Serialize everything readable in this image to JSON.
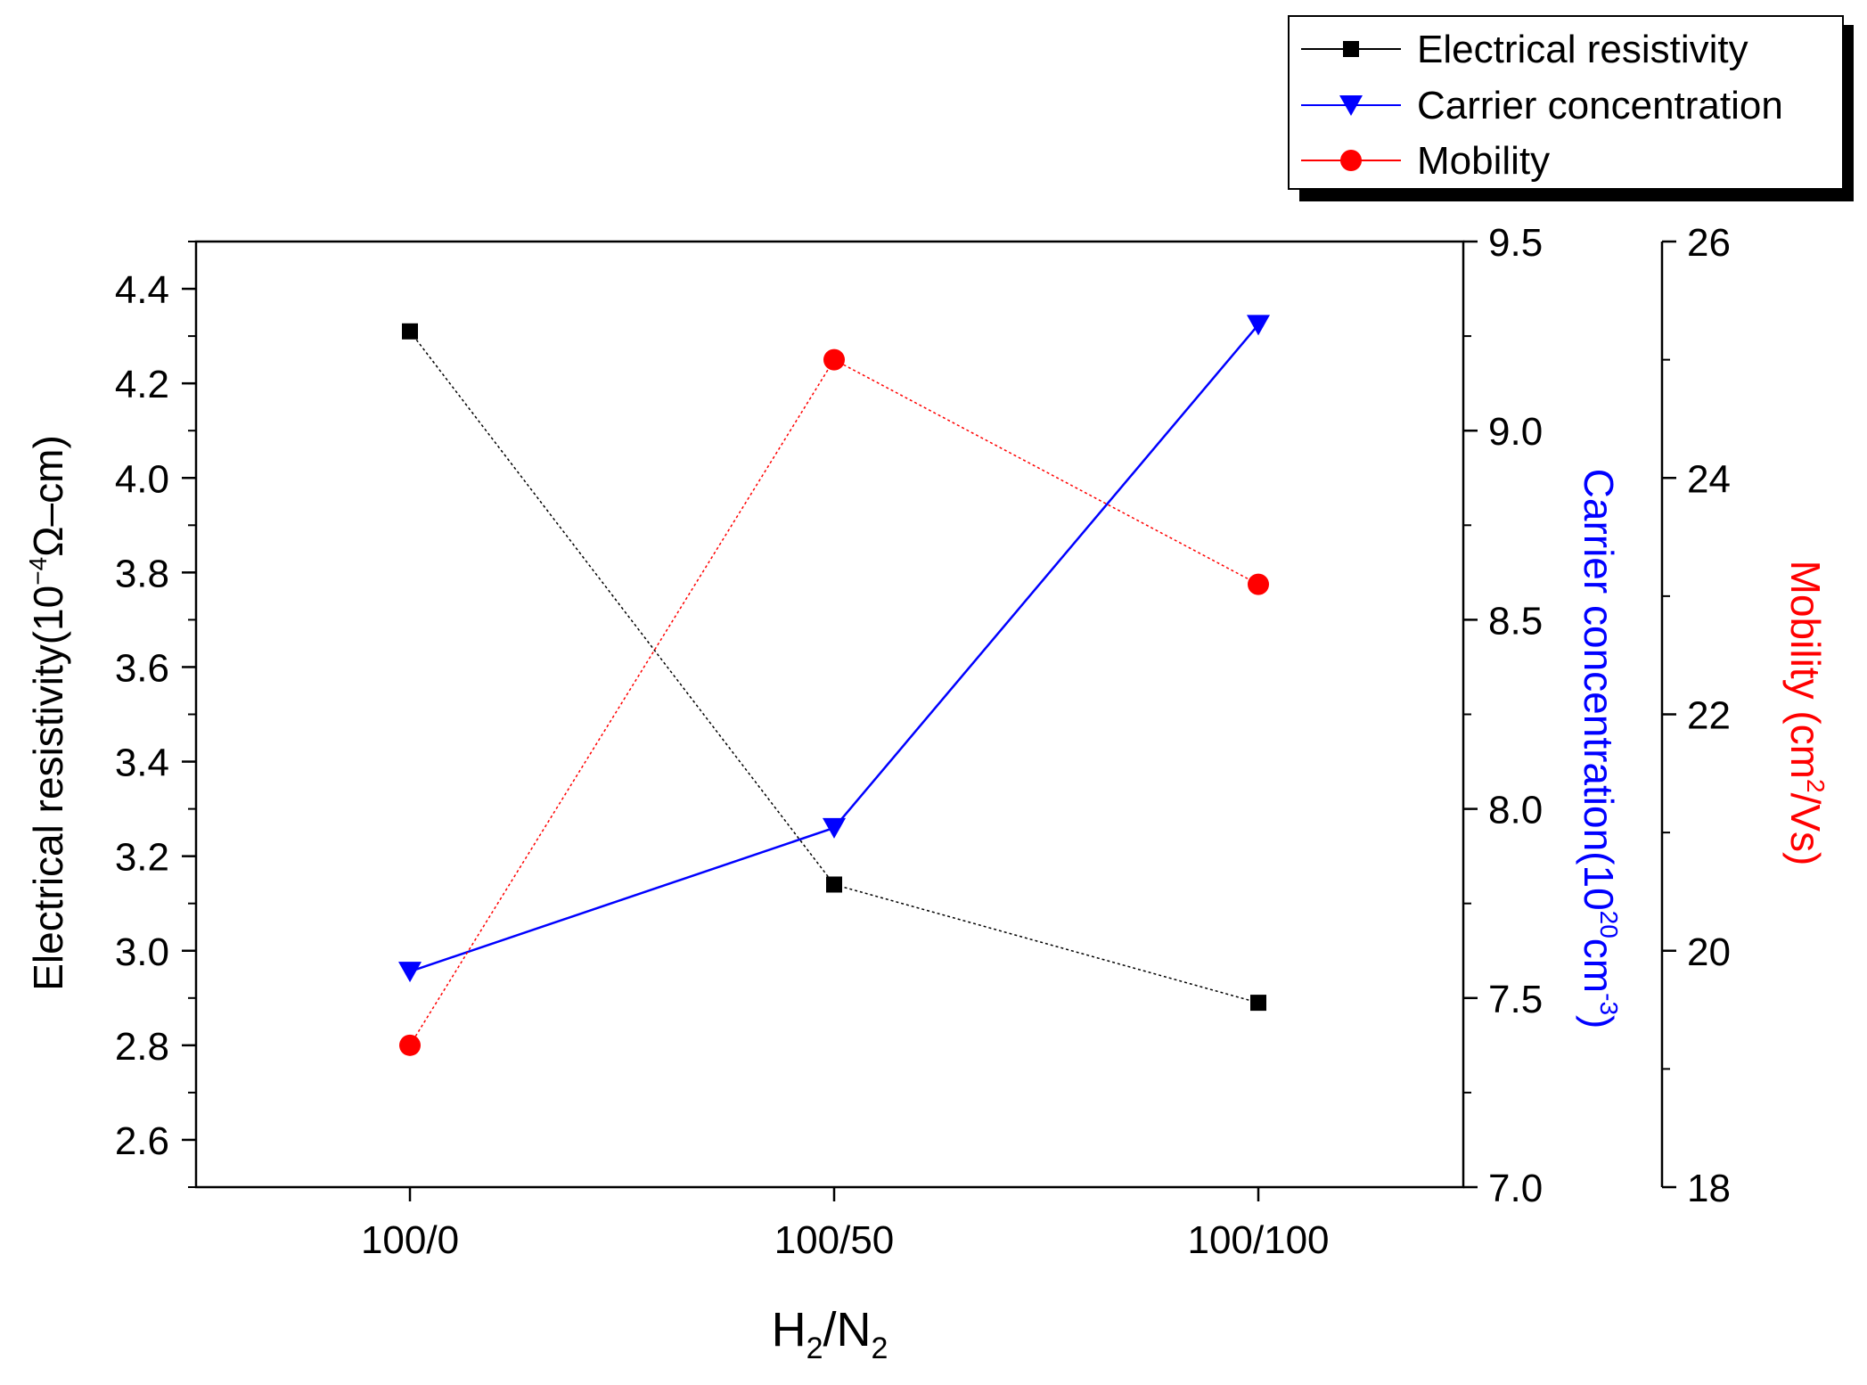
{
  "chart_data": {
    "type": "line",
    "categories": [
      "100/0",
      "100/50",
      "100/100"
    ],
    "xlabel": {
      "main": "H",
      "sub1": "2",
      "sep": "/N",
      "sub2": "2"
    },
    "axes": {
      "left": {
        "label": {
          "main": "Electrical resistivity(10",
          "sup": "−4",
          "tail": "Ω–cm)"
        },
        "ylim": [
          2.5,
          4.5
        ],
        "ticks": [
          2.6,
          2.8,
          3.0,
          3.2,
          3.4,
          3.6,
          3.8,
          4.0,
          4.2,
          4.4
        ],
        "tick_labels": [
          "2.6",
          "2.8",
          "3.0",
          "3.2",
          "3.4",
          "3.6",
          "3.8",
          "4.0",
          "4.2",
          "4.4"
        ]
      },
      "right1": {
        "label": {
          "main": "Carrier concentration(10",
          "sup": "20",
          "mid": "cm",
          "sup2": "-3",
          "tail": ")"
        },
        "ylim": [
          7.0,
          9.5
        ],
        "ticks": [
          7.0,
          7.5,
          8.0,
          8.5,
          9.0,
          9.5
        ],
        "tick_labels": [
          "7.0",
          "7.5",
          "8.0",
          "8.5",
          "9.0",
          "9.5"
        ]
      },
      "right2": {
        "label": {
          "main": "Mobility (cm",
          "sup": "2",
          "tail": "/Vs)"
        },
        "ylim": [
          18,
          26
        ],
        "ticks": [
          18,
          20,
          22,
          24,
          26
        ],
        "tick_labels": [
          "18",
          "20",
          "22",
          "24",
          "26"
        ]
      }
    },
    "series": [
      {
        "name": "Electrical resistivity",
        "axis": "left",
        "values": [
          4.31,
          3.14,
          2.89
        ],
        "color": "#000000",
        "marker": "square"
      },
      {
        "name": "Carrier concentration",
        "axis": "right1",
        "values": [
          7.57,
          7.95,
          9.28
        ],
        "color": "#0000ff",
        "marker": "triangle-down"
      },
      {
        "name": "Mobility",
        "axis": "right2",
        "values": [
          19.2,
          25.0,
          23.1
        ],
        "color": "#ff0000",
        "marker": "circle"
      }
    ],
    "legend": {
      "position": "top-right"
    }
  }
}
